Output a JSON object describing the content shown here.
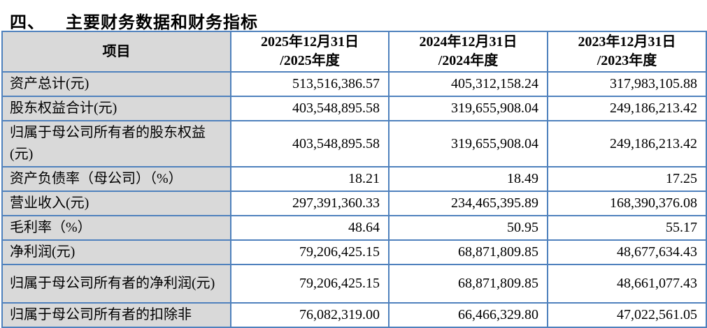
{
  "page": {
    "title_number": "四、",
    "title_text": "主要财务数据和财务指标"
  },
  "colors": {
    "table_border": "#4f81bd",
    "label_column_bg": "#d9d9d9",
    "text": "#000000"
  },
  "table": {
    "header": {
      "item": "项目",
      "col_2025": "2025年12月31日\n/2025年度",
      "col_2024": "2024年12月31日\n/2024年度",
      "col_2023": "2023年12月31日\n/2023年度"
    },
    "rows": [
      {
        "label": "资产总计(元)",
        "v2025": "513,516,386.57",
        "v2024": "405,312,158.24",
        "v2023": "317,983,105.88"
      },
      {
        "label": "股东权益合计(元)",
        "v2025": "403,548,895.58",
        "v2024": "319,655,908.04",
        "v2023": "249,186,213.42"
      },
      {
        "label": "归属于母公司所有者的股东权益(元)",
        "v2025": "403,548,895.58",
        "v2024": "319,655,908.04",
        "v2023": "249,186,213.42"
      },
      {
        "label": "资产负债率（母公司）（%）",
        "v2025": "18.21",
        "v2024": "18.49",
        "v2023": "17.25"
      },
      {
        "label": "营业收入(元)",
        "v2025": "297,391,360.33",
        "v2024": "234,465,395.89",
        "v2023": "168,390,376.08"
      },
      {
        "label": "毛利率（%）",
        "v2025": "48.64",
        "v2024": "50.95",
        "v2023": "55.17"
      },
      {
        "label": "净利润(元)",
        "v2025": "79,206,425.15",
        "v2024": "68,871,809.85",
        "v2023": "48,677,634.43"
      },
      {
        "label": "归属于母公司所有者的净利润(元)",
        "v2025": "79,206,425.15",
        "v2024": "68,871,809.85",
        "v2023": "48,661,077.43"
      },
      {
        "label": "归属于母公司所有者的扣除非",
        "v2025": "76,082,319.00",
        "v2024": "66,466,329.80",
        "v2023": "47,022,561.05"
      }
    ]
  }
}
